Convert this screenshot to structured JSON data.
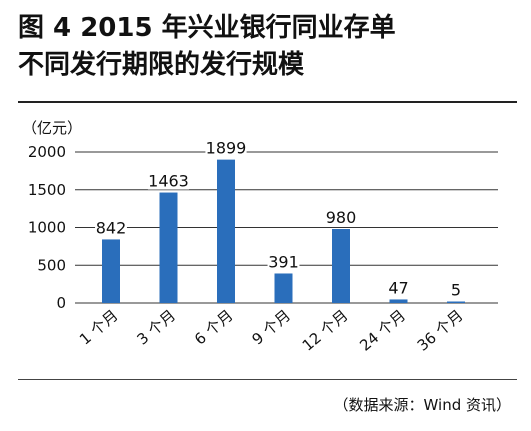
{
  "header": {
    "title_line1": "图 4  2015 年兴业银行同业存单",
    "title_line2": "不同发行期限的发行规模"
  },
  "unit_label": "（亿元）",
  "source_note": "（数据来源：Wind 资讯）",
  "colors": {
    "bar": "#2a6ebb",
    "grid": "#333333",
    "text": "#111111"
  },
  "chart_data": {
    "type": "bar",
    "title": "图 4  2015 年兴业银行同业存单不同发行期限的发行规模",
    "ylabel": "亿元",
    "xlabel": "",
    "categories": [
      "1 个月",
      "3 个月",
      "6 个月",
      "9 个月",
      "12 个月",
      "24 个月",
      "36 个月"
    ],
    "values": [
      842,
      1463,
      1899,
      391,
      980,
      47,
      5
    ],
    "data_labels": [
      "842",
      "1463",
      "1899",
      "391",
      "980",
      "47",
      "5"
    ],
    "ylim": [
      0,
      2000
    ],
    "yticks": [
      0,
      500,
      1000,
      1500,
      2000
    ],
    "ytick_labels": [
      "0",
      "500",
      "1000",
      "1500",
      "2000"
    ],
    "grid": true,
    "legend": "none"
  }
}
